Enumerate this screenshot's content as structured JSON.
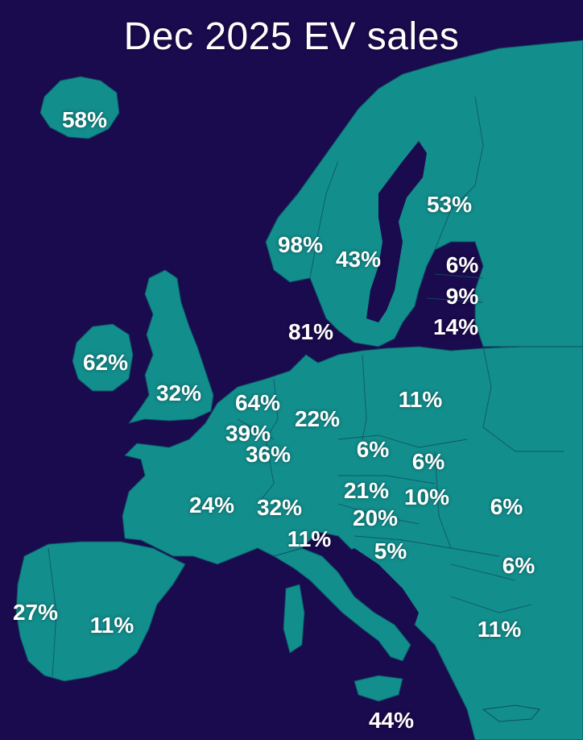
{
  "title": "Dec 2025 EV sales",
  "colors": {
    "sea": "#1a0a4e",
    "land": "#128e8c",
    "border": "#0e4f63",
    "text": "#ffffff"
  },
  "labels": {
    "iceland": "58%",
    "finland": "53%",
    "norway": "98%",
    "sweden": "43%",
    "estonia": "6%",
    "latvia": "9%",
    "lithuania": "14%",
    "denmark": "81%",
    "ireland": "62%",
    "uk": "32%",
    "netherlands": "64%",
    "germany": "22%",
    "poland": "11%",
    "belgium": "39%",
    "luxembourg": "36%",
    "czechia": "6%",
    "slovakia": "6%",
    "austria": "21%",
    "hungary": "10%",
    "romania": "6%",
    "france": "24%",
    "switzerland": "32%",
    "slovenia": "20%",
    "italy": "11%",
    "croatia": "5%",
    "bulgaria": "6%",
    "portugal": "27%",
    "spain": "11%",
    "greece": "11%",
    "malta": "44%"
  }
}
